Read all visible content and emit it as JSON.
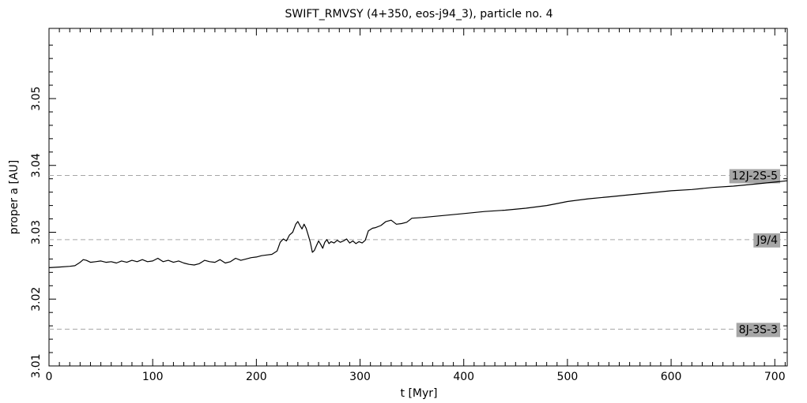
{
  "chart_data": {
    "type": "line",
    "title": "SWIFT_RMVSY (4+350, eos-j94_3), particle no. 4",
    "xlabel": "t [Myr]",
    "ylabel": "proper a [AU]",
    "xlim": [
      0,
      712
    ],
    "ylim": [
      3.01,
      3.0605
    ],
    "x_ticks": [
      0,
      100,
      200,
      300,
      400,
      500,
      600,
      700
    ],
    "x_tick_labels": [
      "0",
      "100",
      "200",
      "300",
      "400",
      "500",
      "600",
      "700"
    ],
    "y_ticks": [
      3.01,
      3.02,
      3.03,
      3.04,
      3.05
    ],
    "y_tick_labels": [
      "3.01",
      "3.02",
      "3.03",
      "3.04",
      "3.05"
    ],
    "grid": false,
    "resonances": [
      {
        "label": "12J-2S-5",
        "a": 3.0385
      },
      {
        "label": "J9/4",
        "a": 3.0289
      },
      {
        "label": "8J-3S-3",
        "a": 3.0155
      }
    ],
    "series": [
      {
        "color": "#000000",
        "x": [
          0,
          10,
          20,
          25,
          30,
          33,
          36,
          40,
          45,
          50,
          55,
          60,
          65,
          70,
          75,
          80,
          85,
          90,
          95,
          100,
          105,
          110,
          115,
          120,
          125,
          130,
          135,
          140,
          145,
          150,
          155,
          160,
          165,
          170,
          175,
          180,
          185,
          190,
          195,
          200,
          205,
          210,
          215,
          220,
          223,
          226,
          229,
          232,
          235,
          238,
          240,
          242,
          244,
          246,
          248,
          250,
          252,
          254,
          256,
          258,
          260,
          262,
          264,
          266,
          268,
          270,
          272,
          275,
          278,
          281,
          284,
          287,
          290,
          293,
          296,
          299,
          302,
          305,
          308,
          312,
          315,
          320,
          325,
          330,
          335,
          340,
          345,
          350,
          360,
          380,
          400,
          420,
          440,
          460,
          480,
          490,
          500,
          520,
          540,
          560,
          580,
          600,
          620,
          640,
          660,
          680,
          700,
          712
        ],
        "y": [
          3.0247,
          3.0248,
          3.0249,
          3.025,
          3.0255,
          3.0259,
          3.0258,
          3.0255,
          3.0256,
          3.0257,
          3.0255,
          3.0256,
          3.0254,
          3.0257,
          3.0255,
          3.0258,
          3.0256,
          3.0259,
          3.0256,
          3.0257,
          3.0261,
          3.0256,
          3.0258,
          3.0255,
          3.0257,
          3.0254,
          3.0252,
          3.0251,
          3.0253,
          3.0258,
          3.0256,
          3.0255,
          3.0259,
          3.0254,
          3.0256,
          3.0261,
          3.0258,
          3.026,
          3.0262,
          3.0263,
          3.0265,
          3.0266,
          3.0267,
          3.0272,
          3.0285,
          3.029,
          3.0287,
          3.0296,
          3.03,
          3.0312,
          3.0316,
          3.031,
          3.0305,
          3.0312,
          3.0306,
          3.0296,
          3.0285,
          3.027,
          3.0273,
          3.028,
          3.0287,
          3.0282,
          3.0276,
          3.0285,
          3.0289,
          3.0283,
          3.0286,
          3.0284,
          3.0288,
          3.0285,
          3.0287,
          3.029,
          3.0284,
          3.0287,
          3.0283,
          3.0286,
          3.0284,
          3.0288,
          3.0302,
          3.0306,
          3.0307,
          3.031,
          3.0316,
          3.0318,
          3.0312,
          3.0313,
          3.0315,
          3.0321,
          3.0322,
          3.0325,
          3.0328,
          3.0331,
          3.0333,
          3.0336,
          3.034,
          3.0343,
          3.0346,
          3.035,
          3.0353,
          3.0356,
          3.0359,
          3.0362,
          3.0364,
          3.0367,
          3.0369,
          3.0372,
          3.0375,
          3.0377
        ]
      }
    ]
  }
}
